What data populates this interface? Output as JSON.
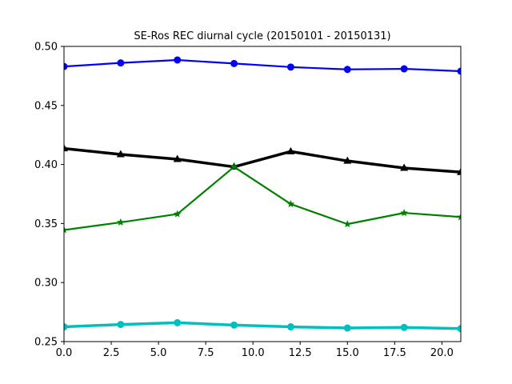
{
  "chart_data": {
    "type": "line",
    "title": "SE-Ros REC diurnal cycle (20150101 - 20150131)",
    "xlabel": "",
    "ylabel": "",
    "xlim": [
      0,
      21
    ],
    "ylim": [
      0.25,
      0.5
    ],
    "x_ticks": [
      0,
      2.5,
      5,
      7.5,
      10,
      12.5,
      15,
      17.5,
      20
    ],
    "x_tick_labels": [
      "0.0",
      "2.5",
      "5.0",
      "7.5",
      "10.0",
      "12.5",
      "15.0",
      "17.5",
      "20.0"
    ],
    "y_ticks": [
      0.25,
      0.3,
      0.35,
      0.4,
      0.45,
      0.5
    ],
    "y_tick_labels": [
      "0.25",
      "0.30",
      "0.35",
      "0.40",
      "0.45",
      "0.50"
    ],
    "grid": false,
    "legend": "none",
    "x": [
      0,
      3,
      6,
      9,
      12,
      15,
      18,
      21
    ],
    "series": [
      {
        "color": "#0000ff",
        "marker": "circle",
        "line_style": "medium",
        "values": [
          0.483,
          0.486,
          0.4885,
          0.4855,
          0.4825,
          0.4805,
          0.481,
          0.479
        ]
      },
      {
        "color": "#000000",
        "marker": "triangle",
        "line_style": "thick",
        "values": [
          0.4135,
          0.4085,
          0.4045,
          0.398,
          0.411,
          0.403,
          0.397,
          0.3935
        ]
      },
      {
        "color": "#008000",
        "marker": "star",
        "line_style": "medium",
        "values": [
          0.3445,
          0.351,
          0.358,
          0.398,
          0.3665,
          0.3495,
          0.359,
          0.3555
        ]
      },
      {
        "color": "#00bfbf",
        "marker": "circle",
        "line_style": "thick",
        "values": [
          0.2625,
          0.2645,
          0.266,
          0.264,
          0.2625,
          0.2615,
          0.262,
          0.261
        ]
      }
    ]
  }
}
